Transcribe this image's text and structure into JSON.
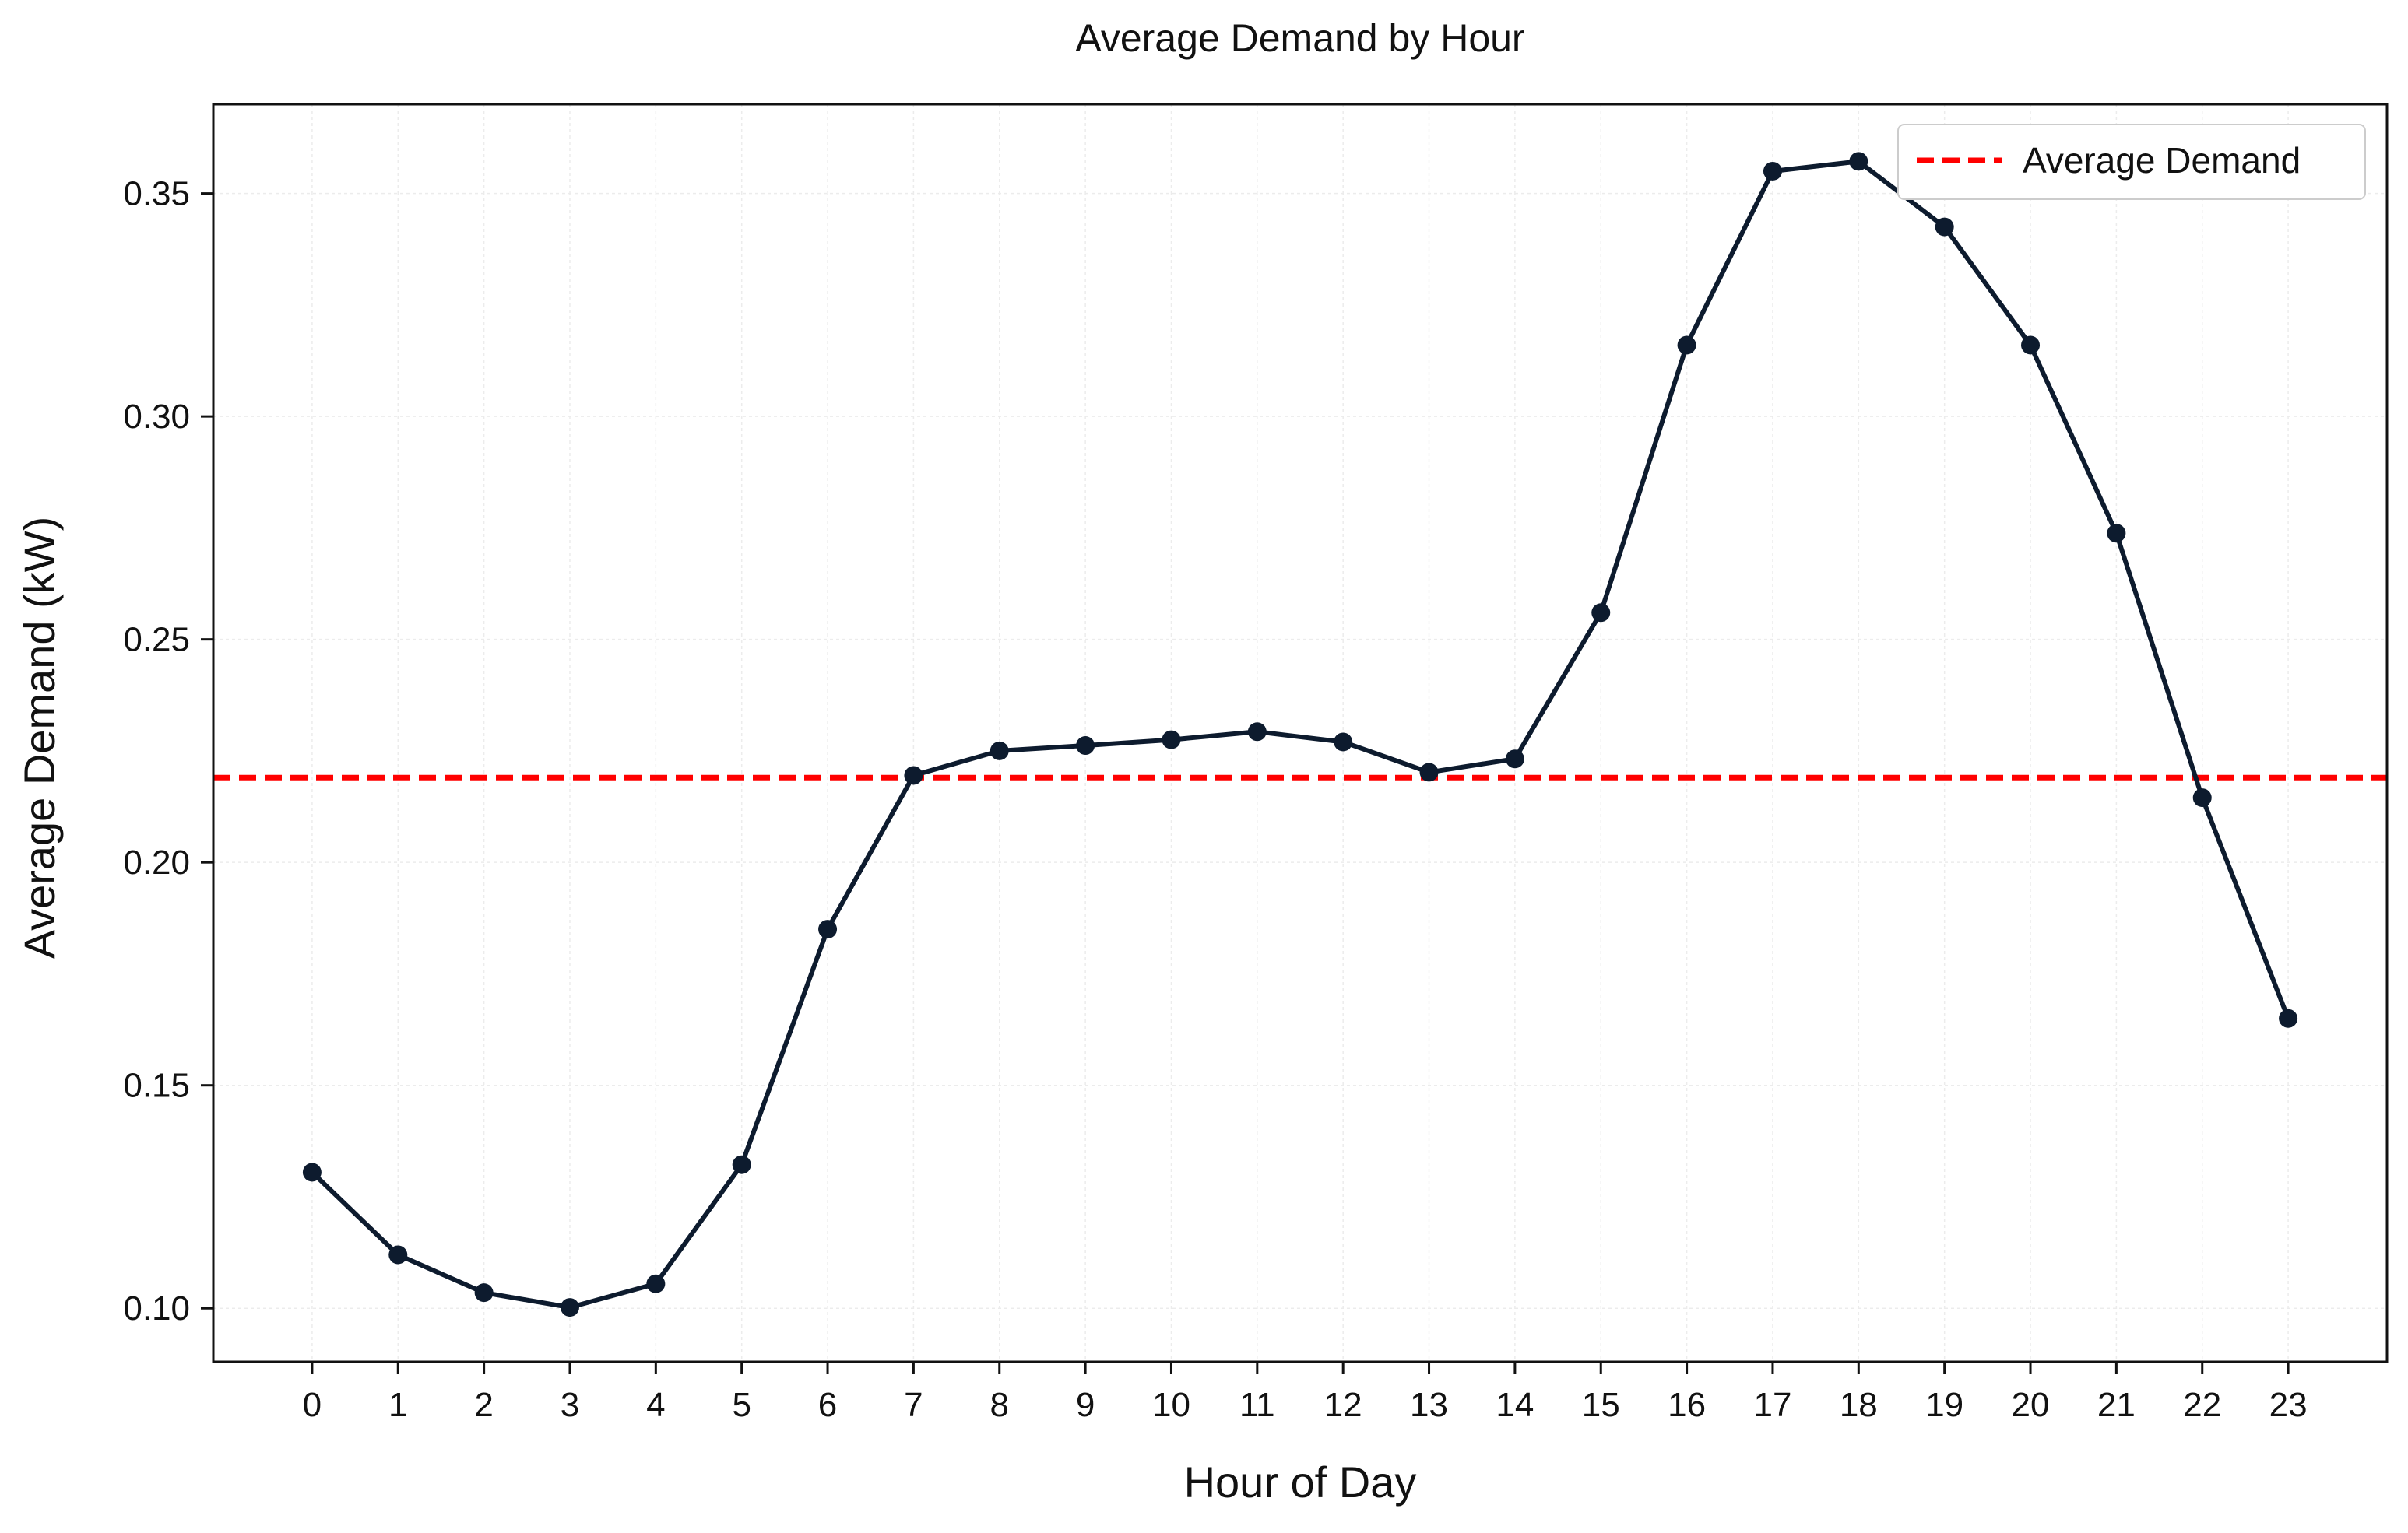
{
  "chart_data": {
    "type": "line",
    "title": "Average Demand by Hour",
    "xlabel": "Hour of Day",
    "ylabel": "Average Demand (kW)",
    "x": [
      0,
      1,
      2,
      3,
      4,
      5,
      6,
      7,
      8,
      9,
      10,
      11,
      12,
      13,
      14,
      15,
      16,
      17,
      18,
      19,
      20,
      21,
      22,
      23
    ],
    "x_tick_labels": [
      "0",
      "1",
      "2",
      "3",
      "4",
      "5",
      "6",
      "7",
      "8",
      "9",
      "10",
      "11",
      "12",
      "13",
      "14",
      "15",
      "16",
      "17",
      "18",
      "19",
      "20",
      "21",
      "22",
      "23"
    ],
    "series": [
      {
        "values": [
          0.1305,
          0.112,
          0.1035,
          0.1002,
          0.1055,
          0.1322,
          0.185,
          0.2195,
          0.225,
          0.2262,
          0.2275,
          0.2293,
          0.227,
          0.2202,
          0.2232,
          0.256,
          0.316,
          0.355,
          0.3572,
          0.3425,
          0.316,
          0.2738,
          0.2145,
          0.165
        ],
        "color": "#0d1b2e",
        "marker": "circle"
      }
    ],
    "reference_lines": [
      {
        "name": "Average Demand",
        "y": 0.219,
        "color": "#ff0000",
        "style": "dashed"
      }
    ],
    "xlim": [
      -1.15,
      24.15
    ],
    "ylim": [
      0.088,
      0.37
    ],
    "y_ticks": [
      0.1,
      0.15,
      0.2,
      0.25,
      0.3,
      0.35
    ],
    "y_tick_labels": [
      "0.10",
      "0.15",
      "0.20",
      "0.25",
      "0.30",
      "0.35"
    ],
    "grid": true,
    "legend": {
      "position": "top-right",
      "entries": [
        "Average Demand"
      ]
    }
  }
}
